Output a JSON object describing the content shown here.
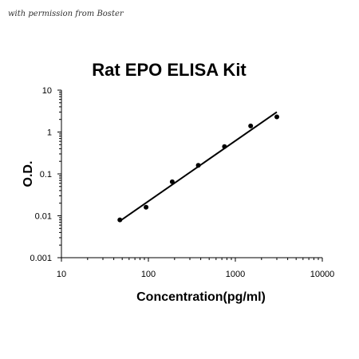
{
  "watermark": "with permission from Boster",
  "chart_data": {
    "type": "scatter",
    "title": "Rat EPO ELISA Kit",
    "xlabel": "Concentration(pg/ml)",
    "ylabel": "O.D.",
    "x_scale": "log",
    "y_scale": "log",
    "xlim": [
      10,
      10000
    ],
    "ylim": [
      0.001,
      10
    ],
    "x_ticks": [
      "10",
      "100",
      "1000",
      "10000"
    ],
    "y_ticks": [
      "0.001",
      "0.01",
      "0.1",
      "1",
      "10"
    ],
    "grid": false,
    "series": [
      {
        "points": [
          {
            "x": 47,
            "y": 0.008
          },
          {
            "x": 94,
            "y": 0.016
          },
          {
            "x": 188,
            "y": 0.065
          },
          {
            "x": 375,
            "y": 0.16
          },
          {
            "x": 750,
            "y": 0.45
          },
          {
            "x": 1500,
            "y": 1.4
          },
          {
            "x": 3000,
            "y": 2.3
          }
        ]
      }
    ],
    "trendline": {
      "x": [
        47,
        3000
      ],
      "y": [
        0.0075,
        3.0
      ]
    },
    "colors": {
      "points": "#000000",
      "line": "#000000",
      "axis": "#000000"
    }
  }
}
